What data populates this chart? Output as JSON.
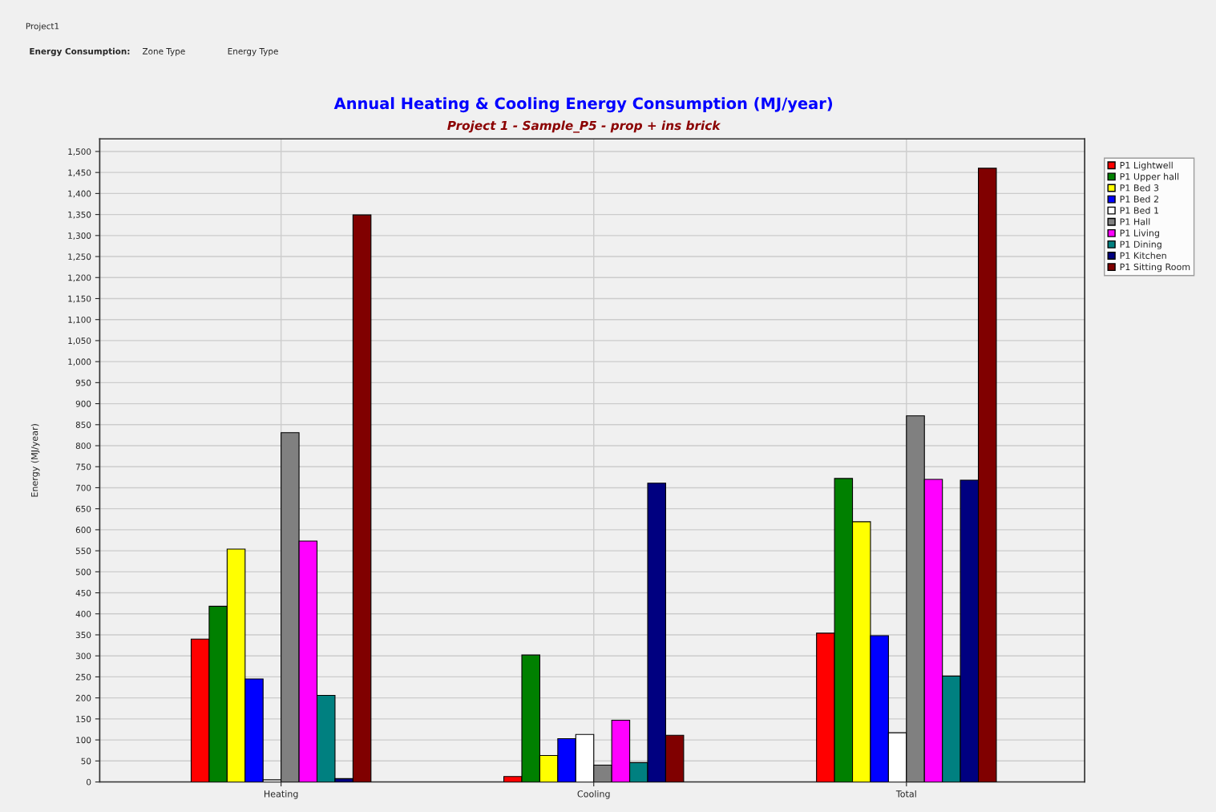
{
  "chart_data": {
    "type": "bar",
    "title": "Annual Heating & Cooling Energy Consumption (MJ/year)",
    "subtitle": "Project 1 - Sample_P5 - prop + ins brick",
    "ylabel": "Energy (MJ/year)",
    "annotations": [
      "Project1",
      "Energy Consumption:",
      "Zone Type",
      "Energy Type"
    ],
    "categories": [
      "Heating",
      "Cooling",
      "Total"
    ],
    "series": [
      {
        "name": "P1 Lightwell",
        "color": "#ff0000",
        "values": [
          340,
          13,
          354
        ]
      },
      {
        "name": "P1 Upper hall",
        "color": "#008000",
        "values": [
          418,
          302,
          722
        ]
      },
      {
        "name": "P1 Bed 3",
        "color": "#ffff00",
        "values": [
          554,
          63,
          619
        ]
      },
      {
        "name": "P1 Bed 2",
        "color": "#0000ff",
        "values": [
          245,
          103,
          348
        ]
      },
      {
        "name": "P1 Bed 1",
        "color": "#ffffff",
        "values": [
          5,
          113,
          117
        ]
      },
      {
        "name": "P1 Hall",
        "color": "#808080",
        "values": [
          831,
          40,
          871
        ]
      },
      {
        "name": "P1 Living",
        "color": "#ff00ff",
        "values": [
          573,
          147,
          720
        ]
      },
      {
        "name": "P1 Dining",
        "color": "#008080",
        "values": [
          206,
          46,
          252
        ]
      },
      {
        "name": "P1 Kitchen",
        "color": "#000080",
        "values": [
          8,
          711,
          718
        ]
      },
      {
        "name": "P1 Sitting Room",
        "color": "#800000",
        "values": [
          1349,
          111,
          1460
        ]
      }
    ],
    "ylim": [
      0,
      1530
    ],
    "yticks": [
      0,
      50,
      100,
      150,
      200,
      250,
      300,
      350,
      400,
      450,
      500,
      550,
      600,
      650,
      700,
      750,
      800,
      850,
      900,
      950,
      {
        "value": 1000,
        "label": "1,000"
      },
      {
        "value": 1050,
        "label": "1,050"
      },
      {
        "value": 1100,
        "label": "1,100"
      },
      {
        "value": 1150,
        "label": "1,150"
      },
      {
        "value": 1200,
        "label": "1,200"
      },
      {
        "value": 1250,
        "label": "1,250"
      },
      {
        "value": 1300,
        "label": "1,300"
      },
      {
        "value": 1350,
        "label": "1,350"
      },
      {
        "value": 1400,
        "label": "1,400"
      },
      {
        "value": 1450,
        "label": "1,450"
      },
      {
        "value": 1500,
        "label": "1,500"
      }
    ],
    "grid": true,
    "legend": "right"
  }
}
